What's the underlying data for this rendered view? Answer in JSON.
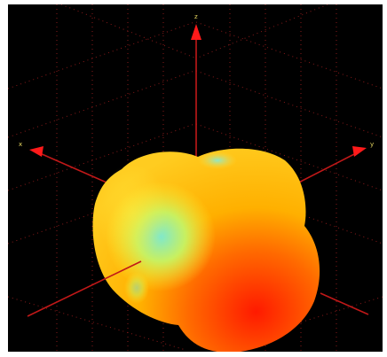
{
  "viewer": {
    "background": "#000000",
    "grid_color": "#8a1a1a",
    "axis_color": "#c01818",
    "arrow_color": "#ff1a1a",
    "label_color": "#e8d860"
  },
  "axes": {
    "vertical_label": "z",
    "left_label": "x",
    "right_label": "y"
  },
  "pattern": {
    "colormap": [
      "#6fe8d0",
      "#ffee30",
      "#ffb000",
      "#ff6a00",
      "#ff1a00"
    ]
  }
}
